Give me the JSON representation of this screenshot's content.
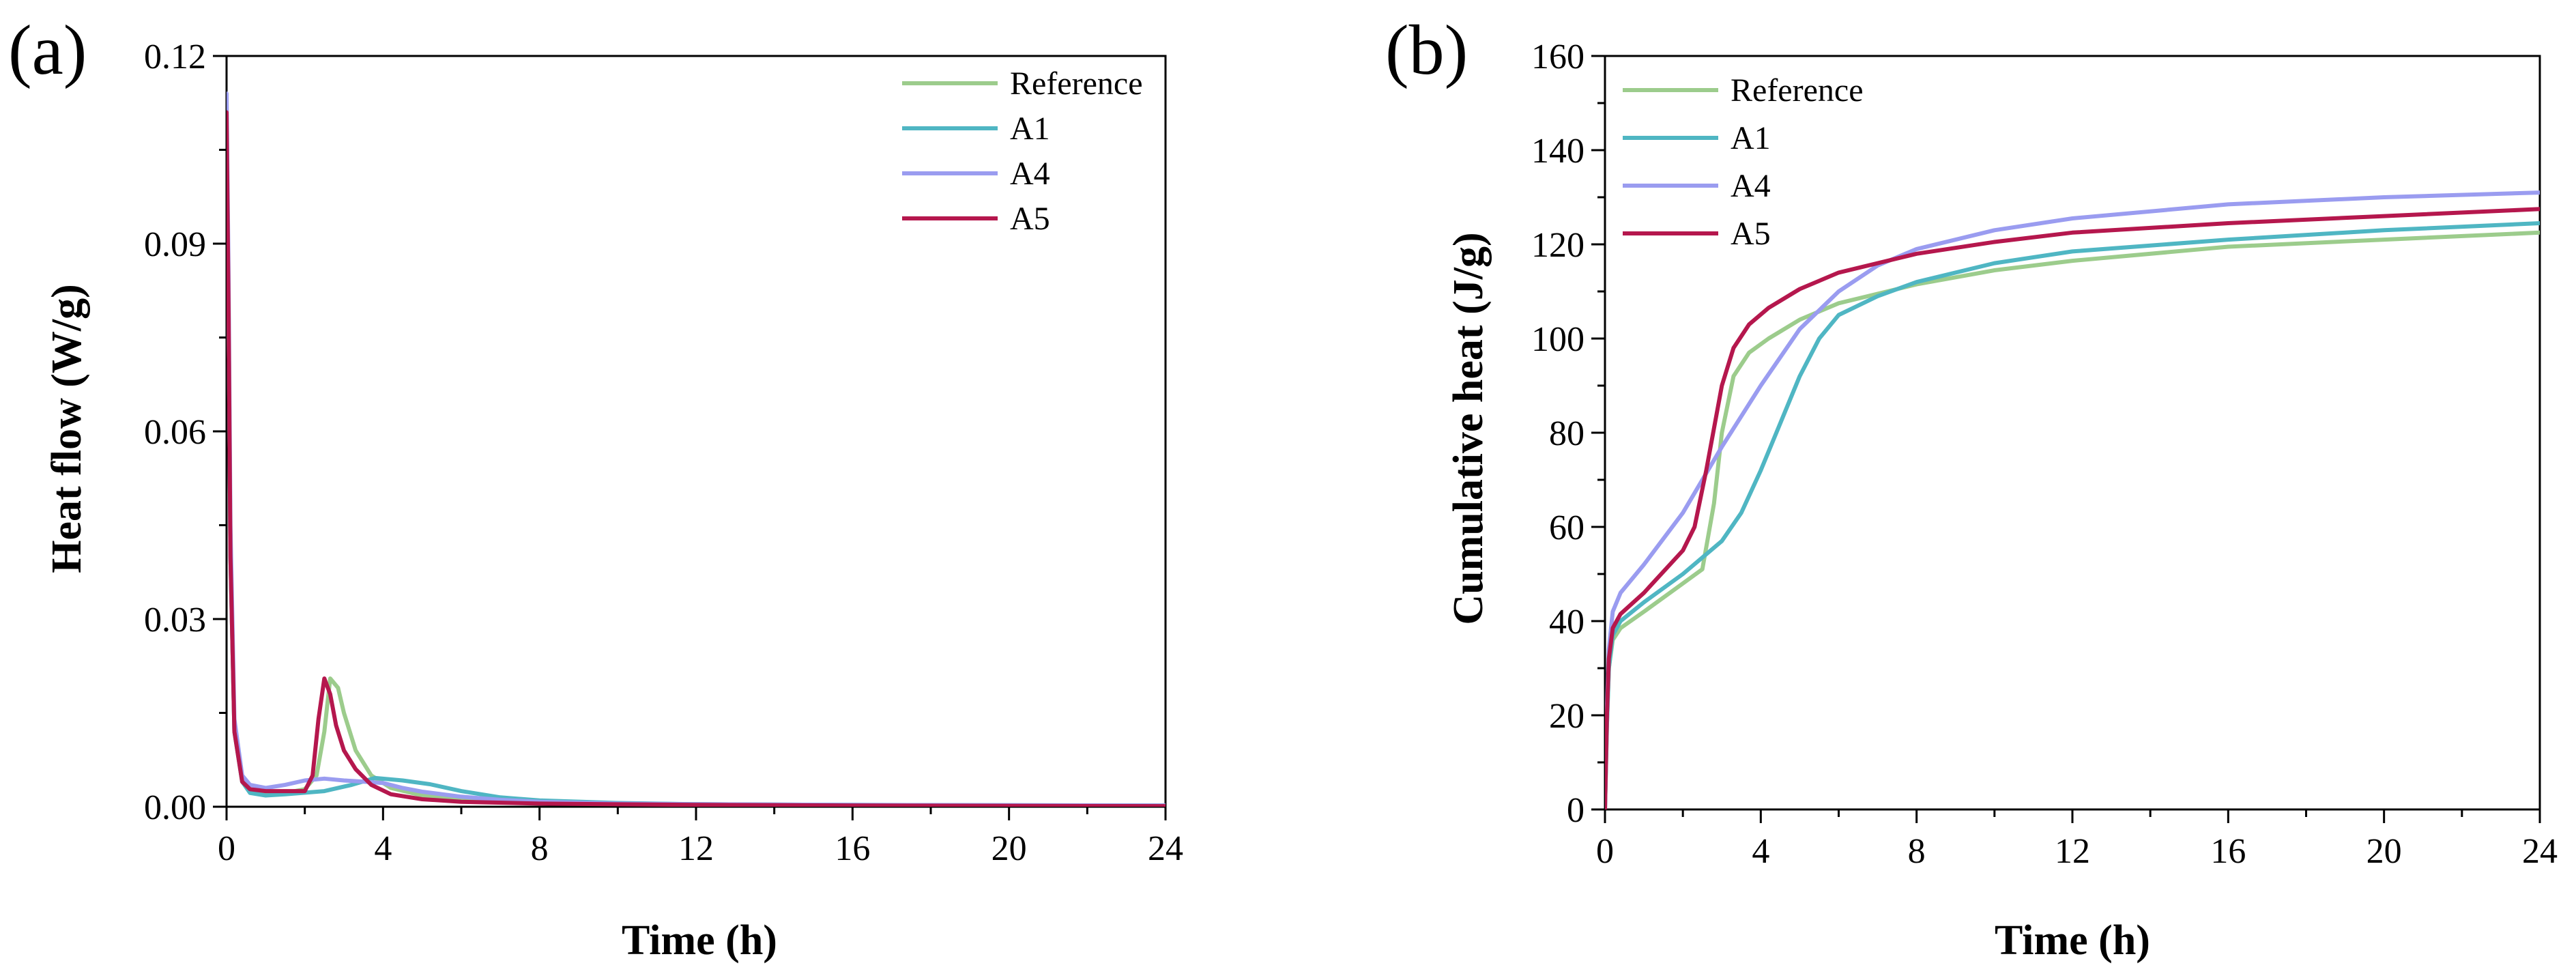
{
  "chart_data": [
    {
      "panel": "(a)",
      "type": "line",
      "title": "",
      "xlabel": "Time (h)",
      "ylabel": "Heat flow (W/g)",
      "xlim": [
        0,
        24
      ],
      "ylim": [
        0,
        0.12
      ],
      "xticks": [
        0,
        4,
        8,
        12,
        16,
        20,
        24
      ],
      "yticks": [
        0.0,
        0.03,
        0.06,
        0.09,
        0.12
      ],
      "ytick_labels": [
        "0.00",
        "0.03",
        "0.06",
        "0.09",
        "0.12"
      ],
      "legend_position": "top-right",
      "series": [
        {
          "name": "Reference",
          "color": "#9ccc8c",
          "points": [
            [
              0,
              0.11
            ],
            [
              0.05,
              0.08
            ],
            [
              0.1,
              0.04
            ],
            [
              0.2,
              0.012
            ],
            [
              0.4,
              0.004
            ],
            [
              0.6,
              0.0025
            ],
            [
              1,
              0.002
            ],
            [
              1.5,
              0.0022
            ],
            [
              2.0,
              0.0028
            ],
            [
              2.3,
              0.005
            ],
            [
              2.5,
              0.012
            ],
            [
              2.65,
              0.0205
            ],
            [
              2.85,
              0.019
            ],
            [
              3.0,
              0.015
            ],
            [
              3.3,
              0.009
            ],
            [
              3.7,
              0.005
            ],
            [
              4.2,
              0.003
            ],
            [
              5,
              0.0018
            ],
            [
              6,
              0.0012
            ],
            [
              8,
              0.0007
            ],
            [
              12,
              0.0004
            ],
            [
              16,
              0.0003
            ],
            [
              20,
              0.0002
            ],
            [
              24,
              0.0002
            ]
          ]
        },
        {
          "name": "A1",
          "color": "#4fb6c3",
          "points": [
            [
              0,
              0.111
            ],
            [
              0.05,
              0.08
            ],
            [
              0.1,
              0.04
            ],
            [
              0.2,
              0.012
            ],
            [
              0.4,
              0.004
            ],
            [
              0.6,
              0.0022
            ],
            [
              1,
              0.0018
            ],
            [
              1.5,
              0.002
            ],
            [
              2.5,
              0.0025
            ],
            [
              3.2,
              0.0035
            ],
            [
              3.8,
              0.0046
            ],
            [
              4.5,
              0.0042
            ],
            [
              5.2,
              0.0036
            ],
            [
              6,
              0.0025
            ],
            [
              7,
              0.0015
            ],
            [
              8,
              0.001
            ],
            [
              10,
              0.0006
            ],
            [
              12,
              0.0004
            ],
            [
              16,
              0.0003
            ],
            [
              24,
              0.0002
            ]
          ]
        },
        {
          "name": "A4",
          "color": "#9a9cf0",
          "points": [
            [
              0,
              0.114
            ],
            [
              0.05,
              0.085
            ],
            [
              0.1,
              0.045
            ],
            [
              0.2,
              0.014
            ],
            [
              0.4,
              0.005
            ],
            [
              0.6,
              0.0035
            ],
            [
              1,
              0.003
            ],
            [
              1.5,
              0.0035
            ],
            [
              2,
              0.0042
            ],
            [
              2.5,
              0.0045
            ],
            [
              3,
              0.0042
            ],
            [
              3.5,
              0.004
            ],
            [
              4,
              0.0038
            ],
            [
              4.5,
              0.003
            ],
            [
              5,
              0.0024
            ],
            [
              6,
              0.0016
            ],
            [
              7,
              0.0011
            ],
            [
              8,
              0.0008
            ],
            [
              10,
              0.0005
            ],
            [
              12,
              0.0004
            ],
            [
              16,
              0.0003
            ],
            [
              24,
              0.0002
            ]
          ]
        },
        {
          "name": "A5",
          "color": "#b5174d",
          "points": [
            [
              0,
              0.111
            ],
            [
              0.05,
              0.08
            ],
            [
              0.1,
              0.04
            ],
            [
              0.2,
              0.012
            ],
            [
              0.4,
              0.004
            ],
            [
              0.6,
              0.0028
            ],
            [
              1,
              0.0025
            ],
            [
              1.5,
              0.0025
            ],
            [
              2.0,
              0.0025
            ],
            [
              2.2,
              0.005
            ],
            [
              2.35,
              0.014
            ],
            [
              2.5,
              0.0205
            ],
            [
              2.65,
              0.018
            ],
            [
              2.8,
              0.013
            ],
            [
              3.0,
              0.009
            ],
            [
              3.3,
              0.006
            ],
            [
              3.7,
              0.0035
            ],
            [
              4.2,
              0.002
            ],
            [
              5,
              0.0012
            ],
            [
              6,
              0.0008
            ],
            [
              8,
              0.0005
            ],
            [
              12,
              0.0003
            ],
            [
              16,
              0.0002
            ],
            [
              24,
              0.0001
            ]
          ]
        }
      ]
    },
    {
      "panel": "(b)",
      "type": "line",
      "title": "",
      "xlabel": "Time (h)",
      "ylabel": "Cumulative heat (J/g)",
      "xlim": [
        0,
        24
      ],
      "ylim": [
        0,
        160
      ],
      "xticks": [
        0,
        4,
        8,
        12,
        16,
        20,
        24
      ],
      "yticks": [
        0,
        20,
        40,
        60,
        80,
        100,
        120,
        140,
        160
      ],
      "ytick_labels": [
        "0",
        "20",
        "40",
        "60",
        "80",
        "100",
        "120",
        "140",
        "160"
      ],
      "legend_position": "top-left",
      "series": [
        {
          "name": "Reference",
          "color": "#9ccc8c",
          "points": [
            [
              0,
              0
            ],
            [
              0.05,
              18
            ],
            [
              0.1,
              30
            ],
            [
              0.2,
              36
            ],
            [
              0.4,
              38.5
            ],
            [
              1,
              42
            ],
            [
              2,
              48
            ],
            [
              2.5,
              51
            ],
            [
              2.8,
              65
            ],
            [
              3.0,
              80
            ],
            [
              3.3,
              92
            ],
            [
              3.7,
              97
            ],
            [
              4.2,
              100
            ],
            [
              5,
              104
            ],
            [
              6,
              107.5
            ],
            [
              8,
              111.5
            ],
            [
              10,
              114.5
            ],
            [
              12,
              116.5
            ],
            [
              16,
              119.5
            ],
            [
              20,
              121
            ],
            [
              24,
              122.5
            ]
          ]
        },
        {
          "name": "A1",
          "color": "#4fb6c3",
          "points": [
            [
              0,
              0
            ],
            [
              0.05,
              18
            ],
            [
              0.1,
              30
            ],
            [
              0.2,
              37
            ],
            [
              0.4,
              40
            ],
            [
              1,
              44
            ],
            [
              2,
              50
            ],
            [
              3,
              57
            ],
            [
              3.5,
              63
            ],
            [
              4,
              72
            ],
            [
              4.5,
              82
            ],
            [
              5,
              92
            ],
            [
              5.5,
              100
            ],
            [
              6,
              105
            ],
            [
              7,
              109
            ],
            [
              8,
              112
            ],
            [
              10,
              116
            ],
            [
              12,
              118.5
            ],
            [
              16,
              121
            ],
            [
              20,
              123
            ],
            [
              24,
              124.5
            ]
          ]
        },
        {
          "name": "A4",
          "color": "#9a9cf0",
          "points": [
            [
              0,
              0
            ],
            [
              0.05,
              22
            ],
            [
              0.1,
              34
            ],
            [
              0.2,
              42
            ],
            [
              0.4,
              46
            ],
            [
              1,
              52
            ],
            [
              2,
              63
            ],
            [
              3,
              77
            ],
            [
              4,
              90
            ],
            [
              5,
              102
            ],
            [
              6,
              110
            ],
            [
              7,
              115.5
            ],
            [
              8,
              119
            ],
            [
              10,
              123
            ],
            [
              12,
              125.5
            ],
            [
              16,
              128.5
            ],
            [
              20,
              130
            ],
            [
              24,
              131
            ]
          ]
        },
        {
          "name": "A5",
          "color": "#b5174d",
          "points": [
            [
              0,
              0
            ],
            [
              0.05,
              20
            ],
            [
              0.1,
              32
            ],
            [
              0.2,
              38.5
            ],
            [
              0.4,
              41.5
            ],
            [
              1,
              46
            ],
            [
              2,
              55
            ],
            [
              2.3,
              60
            ],
            [
              2.6,
              72
            ],
            [
              3.0,
              90
            ],
            [
              3.3,
              98
            ],
            [
              3.7,
              103
            ],
            [
              4.2,
              106.5
            ],
            [
              5,
              110.5
            ],
            [
              6,
              114
            ],
            [
              8,
              118
            ],
            [
              10,
              120.5
            ],
            [
              12,
              122.5
            ],
            [
              16,
              124.5
            ],
            [
              20,
              126
            ],
            [
              24,
              127.5
            ]
          ]
        }
      ]
    }
  ]
}
